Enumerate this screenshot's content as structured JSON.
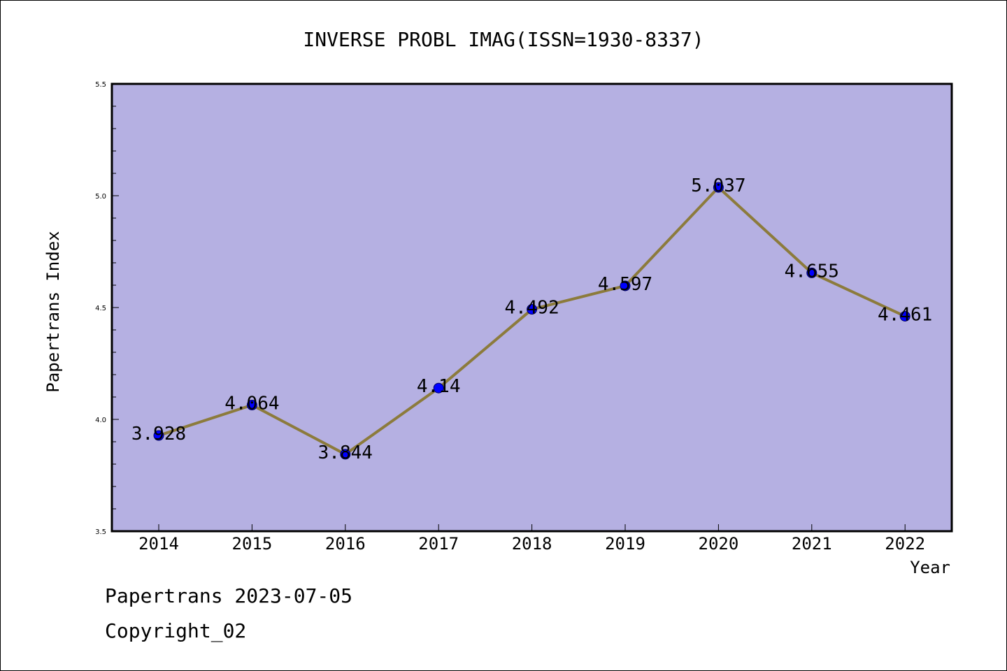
{
  "chart_data": {
    "type": "line",
    "title": "INVERSE PROBL IMAG(ISSN=1930-8337)",
    "xlabel": "Year",
    "ylabel": "Papertrans Index",
    "categories": [
      "2014",
      "2015",
      "2016",
      "2017",
      "2018",
      "2019",
      "2020",
      "2021",
      "2022"
    ],
    "series": [
      {
        "values": [
          3.928,
          4.064,
          3.844,
          4.14,
          4.492,
          4.597,
          5.037,
          4.655,
          4.461
        ],
        "data_labels": [
          "3.928",
          "4.064",
          "3.844",
          "4.14",
          "4.492",
          "4.597",
          "5.037",
          "4.655",
          "4.461"
        ]
      }
    ],
    "ylim": [
      3.5,
      5.5
    ],
    "y_ticks": [
      3.5,
      4.0,
      4.5,
      5.0,
      5.5
    ],
    "y_tick_labels": [
      "3.5",
      "4.0",
      "4.5",
      "5.0",
      "5.5"
    ],
    "grid": false,
    "colors": {
      "plot_background": "#b5b0e2",
      "line": "#8c7b3c",
      "marker": "#0000ff",
      "axis": "#000000"
    }
  },
  "footer": {
    "source_line": "Papertrans 2023-07-05",
    "copyright_line": "Copyright_02"
  }
}
